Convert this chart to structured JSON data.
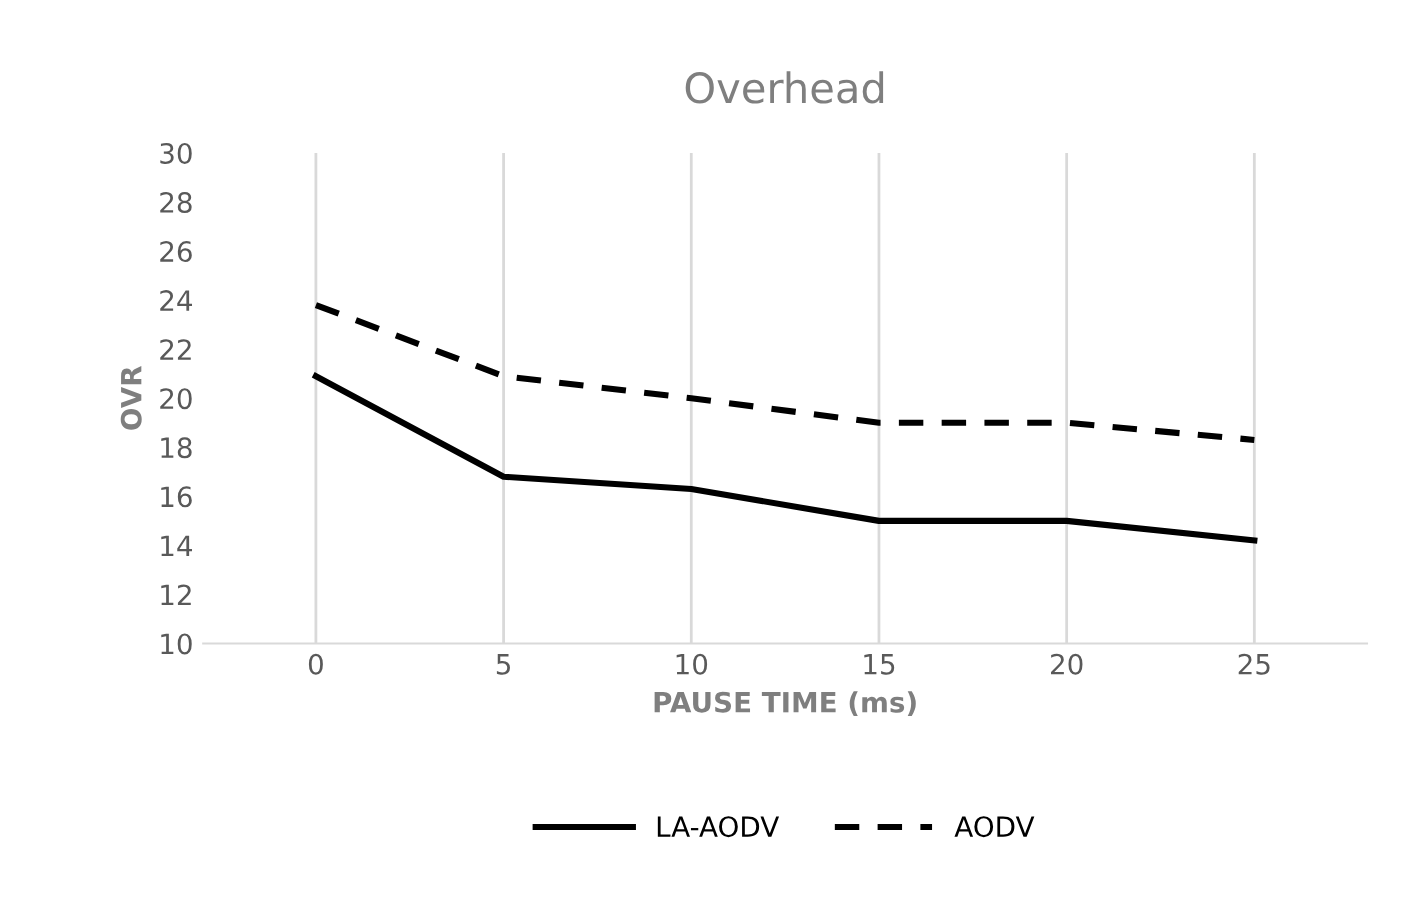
{
  "chart_data": {
    "type": "line",
    "title": "Overhead",
    "xlabel": "PAUSE TIME (ms)",
    "ylabel": "OVR",
    "categories": [
      "0",
      "5",
      "10",
      "15",
      "20",
      "25"
    ],
    "series": [
      {
        "name": "LA-AODV",
        "color": "#000000",
        "line_style": "solid",
        "values": [
          20.9,
          16.8,
          16.3,
          15.0,
          15.0,
          14.2
        ]
      },
      {
        "name": "AODV",
        "color": "#000000",
        "line_style": "dashed",
        "values": [
          23.8,
          20.9,
          20.0,
          19.0,
          19.0,
          18.3
        ]
      }
    ],
    "ylim": [
      10,
      30
    ],
    "yticks": [
      10,
      12,
      14,
      16,
      18,
      20,
      22,
      24,
      26,
      28,
      30
    ],
    "grid": "x",
    "legend": "bottom",
    "marker": "none"
  }
}
